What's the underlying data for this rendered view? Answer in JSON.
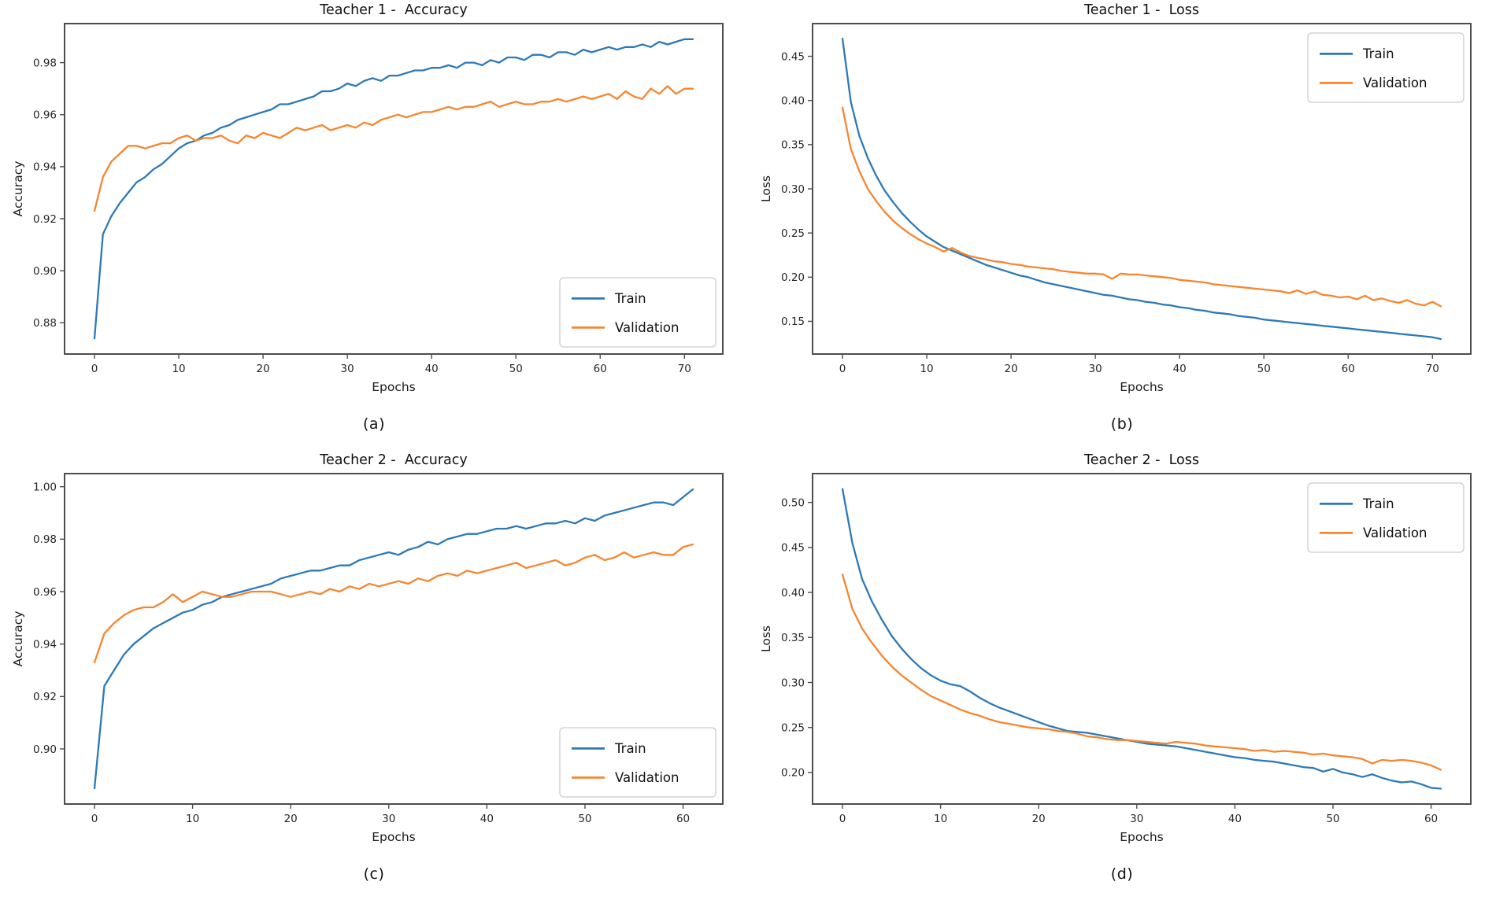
{
  "page": {
    "background": "#ffffff"
  },
  "colors": {
    "train": "#2c79b8",
    "validation": "#f7852e",
    "spine": "#4d4d4d",
    "tick_text": "#262626",
    "legend_border": "#cccccc",
    "legend_bg": "#ffffff"
  },
  "chart_data": [
    {
      "id": "teacher1-accuracy",
      "type": "line",
      "title": "Teacher 1 -  Accuracy",
      "xlabel": "Epochs",
      "ylabel": "Accuracy",
      "caption": "(a)",
      "legend_position": "lower-right",
      "legend_entries": [
        "Train",
        "Validation"
      ],
      "grid": false,
      "xticks": [
        0,
        10,
        20,
        30,
        40,
        50,
        60,
        70
      ],
      "yticks": [
        0.88,
        0.9,
        0.92,
        0.94,
        0.96,
        0.98
      ],
      "xlim": [
        -3.55,
        74.55
      ],
      "ylim": [
        0.868,
        0.995
      ],
      "series": [
        {
          "name": "Train",
          "color_key": "train",
          "values": [
            0.874,
            0.914,
            0.921,
            0.926,
            0.93,
            0.934,
            0.936,
            0.939,
            0.941,
            0.944,
            0.947,
            0.949,
            0.95,
            0.952,
            0.953,
            0.955,
            0.956,
            0.958,
            0.959,
            0.96,
            0.961,
            0.962,
            0.964,
            0.964,
            0.965,
            0.966,
            0.967,
            0.969,
            0.969,
            0.97,
            0.972,
            0.971,
            0.973,
            0.974,
            0.973,
            0.975,
            0.975,
            0.976,
            0.977,
            0.977,
            0.978,
            0.978,
            0.979,
            0.978,
            0.98,
            0.98,
            0.979,
            0.981,
            0.98,
            0.982,
            0.982,
            0.981,
            0.983,
            0.983,
            0.982,
            0.984,
            0.984,
            0.983,
            0.985,
            0.984,
            0.985,
            0.986,
            0.985,
            0.986,
            0.986,
            0.987,
            0.986,
            0.988,
            0.987,
            0.988,
            0.989,
            0.989
          ]
        },
        {
          "name": "Validation",
          "color_key": "validation",
          "values": [
            0.923,
            0.936,
            0.942,
            0.945,
            0.948,
            0.948,
            0.947,
            0.948,
            0.949,
            0.949,
            0.951,
            0.952,
            0.95,
            0.951,
            0.951,
            0.952,
            0.95,
            0.949,
            0.952,
            0.951,
            0.953,
            0.952,
            0.951,
            0.953,
            0.955,
            0.954,
            0.955,
            0.956,
            0.954,
            0.955,
            0.956,
            0.955,
            0.957,
            0.956,
            0.958,
            0.959,
            0.96,
            0.959,
            0.96,
            0.961,
            0.961,
            0.962,
            0.963,
            0.962,
            0.963,
            0.963,
            0.964,
            0.965,
            0.963,
            0.964,
            0.965,
            0.964,
            0.964,
            0.965,
            0.965,
            0.966,
            0.965,
            0.966,
            0.967,
            0.966,
            0.967,
            0.968,
            0.966,
            0.969,
            0.967,
            0.966,
            0.97,
            0.968,
            0.971,
            0.968,
            0.97,
            0.97
          ]
        }
      ]
    },
    {
      "id": "teacher1-loss",
      "type": "line",
      "title": "Teacher 1 -  Loss",
      "xlabel": "Epochs",
      "ylabel": "Loss",
      "caption": "(b)",
      "legend_position": "upper-right",
      "legend_entries": [
        "Train",
        "Validation"
      ],
      "grid": false,
      "xticks": [
        0,
        10,
        20,
        30,
        40,
        50,
        60,
        70
      ],
      "yticks": [
        0.15,
        0.2,
        0.25,
        0.3,
        0.35,
        0.4,
        0.45
      ],
      "xlim": [
        -3.55,
        74.55
      ],
      "ylim": [
        0.113,
        0.487
      ],
      "series": [
        {
          "name": "Train",
          "color_key": "train",
          "values": [
            0.47,
            0.398,
            0.36,
            0.335,
            0.315,
            0.298,
            0.285,
            0.273,
            0.263,
            0.254,
            0.246,
            0.24,
            0.234,
            0.23,
            0.226,
            0.222,
            0.218,
            0.214,
            0.211,
            0.208,
            0.205,
            0.202,
            0.2,
            0.197,
            0.194,
            0.192,
            0.19,
            0.188,
            0.186,
            0.184,
            0.182,
            0.18,
            0.179,
            0.177,
            0.175,
            0.174,
            0.172,
            0.171,
            0.169,
            0.168,
            0.166,
            0.165,
            0.163,
            0.162,
            0.16,
            0.159,
            0.158,
            0.156,
            0.155,
            0.154,
            0.152,
            0.151,
            0.15,
            0.149,
            0.148,
            0.147,
            0.146,
            0.145,
            0.144,
            0.143,
            0.142,
            0.141,
            0.14,
            0.139,
            0.138,
            0.137,
            0.136,
            0.135,
            0.134,
            0.133,
            0.132,
            0.13
          ]
        },
        {
          "name": "Validation",
          "color_key": "validation",
          "values": [
            0.392,
            0.345,
            0.32,
            0.3,
            0.286,
            0.274,
            0.264,
            0.256,
            0.249,
            0.243,
            0.238,
            0.234,
            0.229,
            0.233,
            0.228,
            0.224,
            0.222,
            0.22,
            0.218,
            0.217,
            0.215,
            0.214,
            0.212,
            0.211,
            0.21,
            0.209,
            0.207,
            0.206,
            0.205,
            0.204,
            0.204,
            0.203,
            0.198,
            0.204,
            0.203,
            0.203,
            0.202,
            0.201,
            0.2,
            0.199,
            0.197,
            0.196,
            0.195,
            0.194,
            0.192,
            0.191,
            0.19,
            0.189,
            0.188,
            0.187,
            0.186,
            0.185,
            0.184,
            0.182,
            0.185,
            0.181,
            0.184,
            0.18,
            0.179,
            0.177,
            0.178,
            0.175,
            0.179,
            0.174,
            0.176,
            0.173,
            0.171,
            0.174,
            0.17,
            0.168,
            0.172,
            0.167
          ]
        }
      ]
    },
    {
      "id": "teacher2-accuracy",
      "type": "line",
      "title": "Teacher 2 -  Accuracy",
      "xlabel": "Epochs",
      "ylabel": "Accuracy",
      "caption": "(c)",
      "legend_position": "lower-right",
      "legend_entries": [
        "Train",
        "Validation"
      ],
      "grid": false,
      "xticks": [
        0,
        10,
        20,
        30,
        40,
        50,
        60
      ],
      "yticks": [
        0.9,
        0.92,
        0.94,
        0.96,
        0.98,
        1.0
      ],
      "xlim": [
        -3.05,
        64.05
      ],
      "ylim": [
        0.879,
        1.005
      ],
      "series": [
        {
          "name": "Train",
          "color_key": "train",
          "values": [
            0.885,
            0.924,
            0.93,
            0.936,
            0.94,
            0.943,
            0.946,
            0.948,
            0.95,
            0.952,
            0.953,
            0.955,
            0.956,
            0.958,
            0.959,
            0.96,
            0.961,
            0.962,
            0.963,
            0.965,
            0.966,
            0.967,
            0.968,
            0.968,
            0.969,
            0.97,
            0.97,
            0.972,
            0.973,
            0.974,
            0.975,
            0.974,
            0.976,
            0.977,
            0.979,
            0.978,
            0.98,
            0.981,
            0.982,
            0.982,
            0.983,
            0.984,
            0.984,
            0.985,
            0.984,
            0.985,
            0.986,
            0.986,
            0.987,
            0.986,
            0.988,
            0.987,
            0.989,
            0.99,
            0.991,
            0.992,
            0.993,
            0.994,
            0.994,
            0.993,
            0.996,
            0.999
          ]
        },
        {
          "name": "Validation",
          "color_key": "validation",
          "values": [
            0.933,
            0.944,
            0.948,
            0.951,
            0.953,
            0.954,
            0.954,
            0.956,
            0.959,
            0.956,
            0.958,
            0.96,
            0.959,
            0.958,
            0.958,
            0.959,
            0.96,
            0.96,
            0.96,
            0.959,
            0.958,
            0.959,
            0.96,
            0.959,
            0.961,
            0.96,
            0.962,
            0.961,
            0.963,
            0.962,
            0.963,
            0.964,
            0.963,
            0.965,
            0.964,
            0.966,
            0.967,
            0.966,
            0.968,
            0.967,
            0.968,
            0.969,
            0.97,
            0.971,
            0.969,
            0.97,
            0.971,
            0.972,
            0.97,
            0.971,
            0.973,
            0.974,
            0.972,
            0.973,
            0.975,
            0.973,
            0.974,
            0.975,
            0.974,
            0.974,
            0.977,
            0.978
          ]
        }
      ]
    },
    {
      "id": "teacher2-loss",
      "type": "line",
      "title": "Teacher 2 -  Loss",
      "xlabel": "Epochs",
      "ylabel": "Loss",
      "caption": "(d)",
      "legend_position": "upper-right",
      "legend_entries": [
        "Train",
        "Validation"
      ],
      "grid": false,
      "xticks": [
        0,
        10,
        20,
        30,
        40,
        50,
        60
      ],
      "yticks": [
        0.2,
        0.25,
        0.3,
        0.35,
        0.4,
        0.45,
        0.5
      ],
      "xlim": [
        -3.05,
        64.05
      ],
      "ylim": [
        0.165,
        0.532
      ],
      "series": [
        {
          "name": "Train",
          "color_key": "train",
          "values": [
            0.515,
            0.455,
            0.415,
            0.39,
            0.37,
            0.352,
            0.338,
            0.326,
            0.316,
            0.308,
            0.302,
            0.298,
            0.296,
            0.29,
            0.283,
            0.277,
            0.272,
            0.268,
            0.264,
            0.26,
            0.256,
            0.252,
            0.249,
            0.246,
            0.245,
            0.244,
            0.242,
            0.24,
            0.238,
            0.236,
            0.234,
            0.232,
            0.231,
            0.23,
            0.229,
            0.227,
            0.225,
            0.223,
            0.221,
            0.219,
            0.217,
            0.216,
            0.214,
            0.213,
            0.212,
            0.21,
            0.208,
            0.206,
            0.205,
            0.201,
            0.204,
            0.2,
            0.198,
            0.195,
            0.198,
            0.194,
            0.191,
            0.189,
            0.19,
            0.187,
            0.183,
            0.182
          ]
        },
        {
          "name": "Validation",
          "color_key": "validation",
          "values": [
            0.42,
            0.382,
            0.36,
            0.344,
            0.33,
            0.318,
            0.308,
            0.3,
            0.292,
            0.285,
            0.28,
            0.275,
            0.27,
            0.266,
            0.263,
            0.259,
            0.256,
            0.254,
            0.252,
            0.25,
            0.249,
            0.248,
            0.246,
            0.245,
            0.243,
            0.24,
            0.239,
            0.237,
            0.236,
            0.236,
            0.235,
            0.234,
            0.233,
            0.232,
            0.234,
            0.233,
            0.232,
            0.23,
            0.229,
            0.228,
            0.227,
            0.226,
            0.224,
            0.225,
            0.223,
            0.224,
            0.223,
            0.222,
            0.22,
            0.221,
            0.219,
            0.218,
            0.217,
            0.215,
            0.21,
            0.214,
            0.213,
            0.214,
            0.213,
            0.211,
            0.208,
            0.203
          ]
        }
      ]
    }
  ]
}
